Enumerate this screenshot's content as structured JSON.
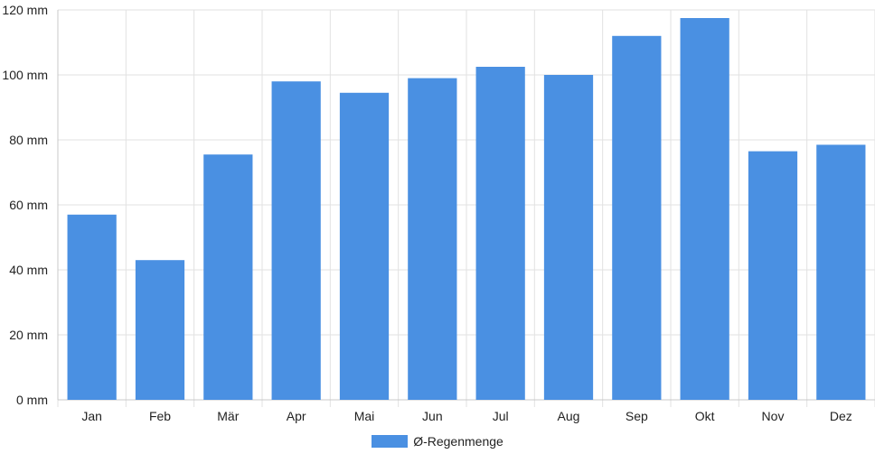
{
  "chart_data": {
    "type": "bar",
    "categories": [
      "Jan",
      "Feb",
      "Mär",
      "Apr",
      "Mai",
      "Jun",
      "Jul",
      "Aug",
      "Sep",
      "Okt",
      "Nov",
      "Dez"
    ],
    "series": [
      {
        "name": "Ø-Regenmenge",
        "values": [
          57,
          43,
          75.5,
          98,
          94.5,
          99,
          102.5,
          100,
          112,
          117.5,
          76.5,
          78.5
        ],
        "color": "#4a90e2"
      }
    ],
    "ylim": [
      0,
      120
    ],
    "yticks": [
      0,
      20,
      40,
      60,
      80,
      100,
      120
    ],
    "y_unit_suffix": " mm",
    "grid": true,
    "legend_position": "bottom"
  }
}
